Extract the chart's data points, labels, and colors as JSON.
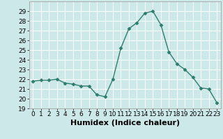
{
  "x": [
    0,
    1,
    2,
    3,
    4,
    5,
    6,
    7,
    8,
    9,
    10,
    11,
    12,
    13,
    14,
    15,
    16,
    17,
    18,
    19,
    20,
    21,
    22,
    23
  ],
  "y": [
    21.8,
    21.9,
    21.9,
    22.0,
    21.6,
    21.5,
    21.3,
    21.3,
    20.4,
    20.2,
    22.0,
    25.2,
    27.2,
    27.8,
    28.8,
    29.0,
    27.6,
    24.8,
    23.6,
    23.0,
    22.2,
    21.1,
    21.0,
    19.6
  ],
  "line_color": "#2e7d6e",
  "marker": "D",
  "markersize": 2.5,
  "linewidth": 1.0,
  "xlabel": "Humidex (Indice chaleur)",
  "ylim": [
    19,
    30
  ],
  "yticks": [
    19,
    20,
    21,
    22,
    23,
    24,
    25,
    26,
    27,
    28,
    29
  ],
  "xticks": [
    0,
    1,
    2,
    3,
    4,
    5,
    6,
    7,
    8,
    9,
    10,
    11,
    12,
    13,
    14,
    15,
    16,
    17,
    18,
    19,
    20,
    21,
    22,
    23
  ],
  "bg_color": "#cde8e8",
  "grid_color": "#ffffff",
  "border_color": "#aaaaaa",
  "tick_fontsize": 6.5,
  "xlabel_fontsize": 8
}
